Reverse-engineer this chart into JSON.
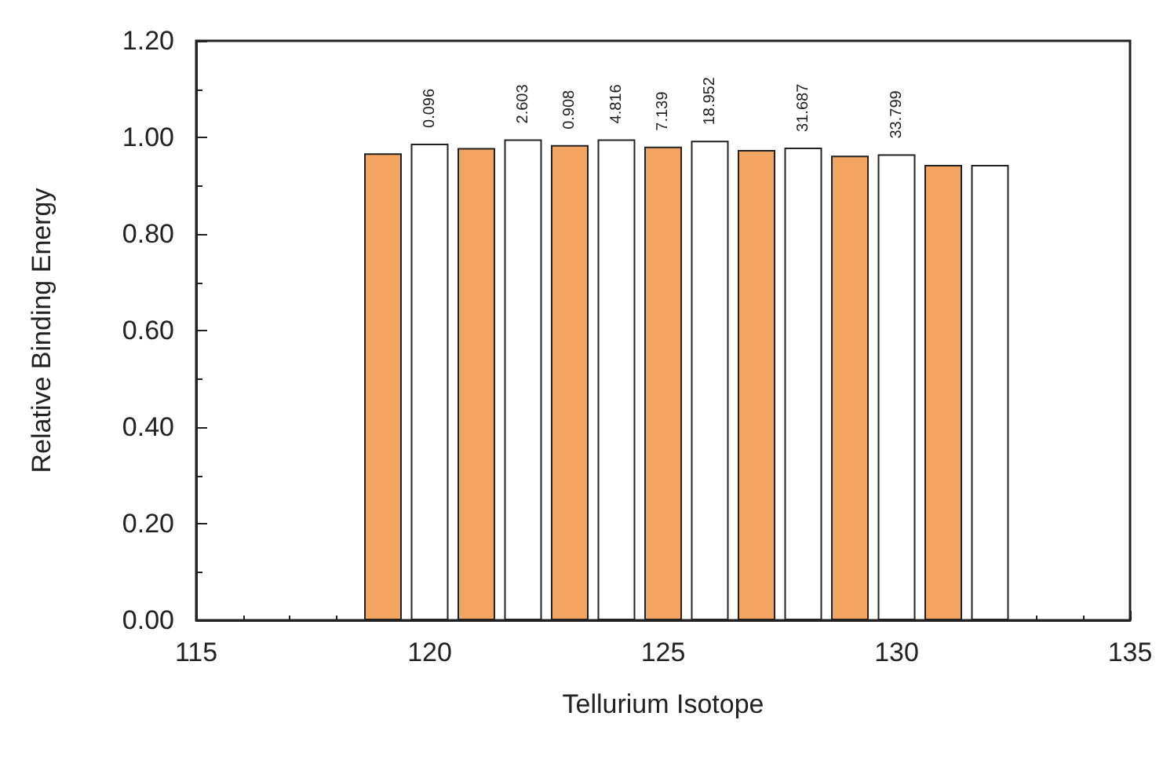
{
  "chart_data": {
    "type": "bar",
    "xlabel": "Tellurium Isotope",
    "ylabel": "Relative Binding Energy",
    "x": [
      119,
      120,
      121,
      122,
      123,
      124,
      125,
      126,
      127,
      128,
      129,
      130,
      131,
      132
    ],
    "values": [
      0.967,
      0.987,
      0.978,
      0.996,
      0.984,
      0.996,
      0.981,
      0.993,
      0.974,
      0.979,
      0.962,
      0.965,
      0.943,
      0.943
    ],
    "colors": [
      "#f2a460",
      "#ffffff",
      "#f2a460",
      "#ffffff",
      "#f2a460",
      "#ffffff",
      "#f2a460",
      "#ffffff",
      "#f2a460",
      "#ffffff",
      "#f2a460",
      "#ffffff",
      "#f2a460",
      "#ffffff"
    ],
    "annotations": [
      {
        "text": "0.096",
        "x": 120,
        "y": 0.987
      },
      {
        "text": "2.603",
        "x": 122,
        "y": 0.996
      },
      {
        "text": "0.908",
        "x": 123,
        "y": 0.984
      },
      {
        "text": "4.816",
        "x": 124,
        "y": 0.996
      },
      {
        "text": "7.139",
        "x": 125,
        "y": 0.981
      },
      {
        "text": "18.952",
        "x": 126,
        "y": 0.993
      },
      {
        "text": "31.687",
        "x": 128,
        "y": 0.979
      },
      {
        "text": "33.799",
        "x": 130,
        "y": 0.965
      }
    ],
    "xlim": [
      115,
      135
    ],
    "xticks": [
      115,
      120,
      125,
      130,
      135
    ],
    "ylim": [
      0,
      1.2
    ],
    "yticks": [
      {
        "value": 0,
        "label": "0.00"
      },
      {
        "value": 0.2,
        "label": "0.20"
      },
      {
        "value": 0.4,
        "label": "0.40"
      },
      {
        "value": 0.6,
        "label": "0.60"
      },
      {
        "value": 0.8,
        "label": "0.80"
      },
      {
        "value": 1,
        "label": "1.00"
      },
      {
        "value": 1.2,
        "label": "1.20"
      }
    ],
    "grid": false
  }
}
